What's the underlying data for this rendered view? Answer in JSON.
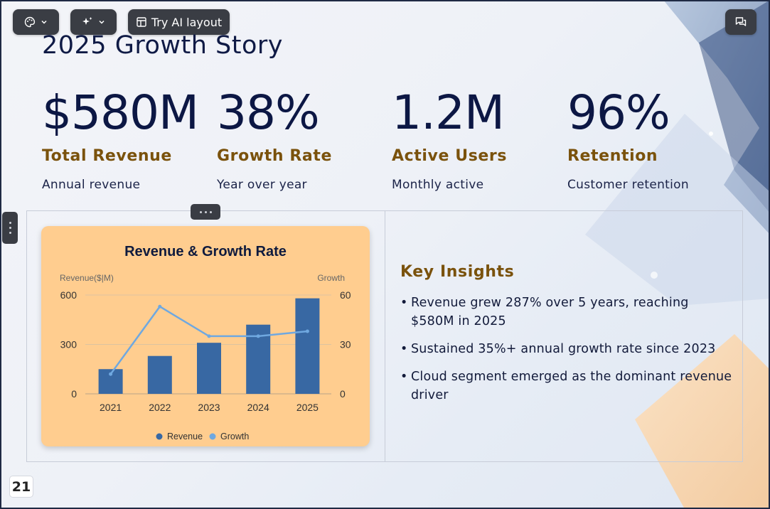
{
  "toolbar": {
    "theme_icon": "palette-icon",
    "ai_icon": "sparkles-icon",
    "try_ai_label": "Try AI layout",
    "comment_icon": "comment-icon"
  },
  "slide": {
    "title": "2025 Growth Story",
    "page_number": "21",
    "stats": [
      {
        "value": "$580M",
        "label": "Total Revenue",
        "sub": "Annual revenue"
      },
      {
        "value": "38%",
        "label": "Growth Rate",
        "sub": "Year over year"
      },
      {
        "value": "1.2M",
        "label": "Active Users",
        "sub": "Monthly active"
      },
      {
        "value": "96%",
        "label": "Retention",
        "sub": "Customer retention"
      }
    ],
    "insights": {
      "heading": "Key Insights",
      "items": [
        "Revenue grew 287% over 5 years, reaching $580M in 2025",
        "Sustained 35%+ annual growth rate since 2023",
        "Cloud segment emerged as the dominant revenue driver"
      ]
    }
  },
  "colors": {
    "accent_gold": "#7a520c",
    "navy": "#0c1744",
    "chart_bg": "#ffcd8f",
    "bar": "#3868a3",
    "line": "#6fa8e0"
  },
  "chart_data": {
    "type": "bar",
    "title": "Revenue & Growth Rate",
    "categories": [
      "2021",
      "2022",
      "2023",
      "2024",
      "2025"
    ],
    "y_left_label": "Revenue($|M)",
    "y_right_label": "Growth",
    "y_left_ticks": [
      "600",
      "300",
      "0"
    ],
    "y_right_ticks": [
      "60",
      "30",
      "0"
    ],
    "ylim_left": [
      0,
      600
    ],
    "ylim_right": [
      0,
      60
    ],
    "series": [
      {
        "name": "Revenue",
        "type": "bar",
        "axis": "left",
        "values": [
          150,
          230,
          310,
          420,
          580
        ]
      },
      {
        "name": "Growth",
        "type": "line",
        "axis": "right",
        "values": [
          12,
          53,
          35,
          35,
          38
        ]
      }
    ],
    "legend_position": "bottom",
    "grid": true
  }
}
